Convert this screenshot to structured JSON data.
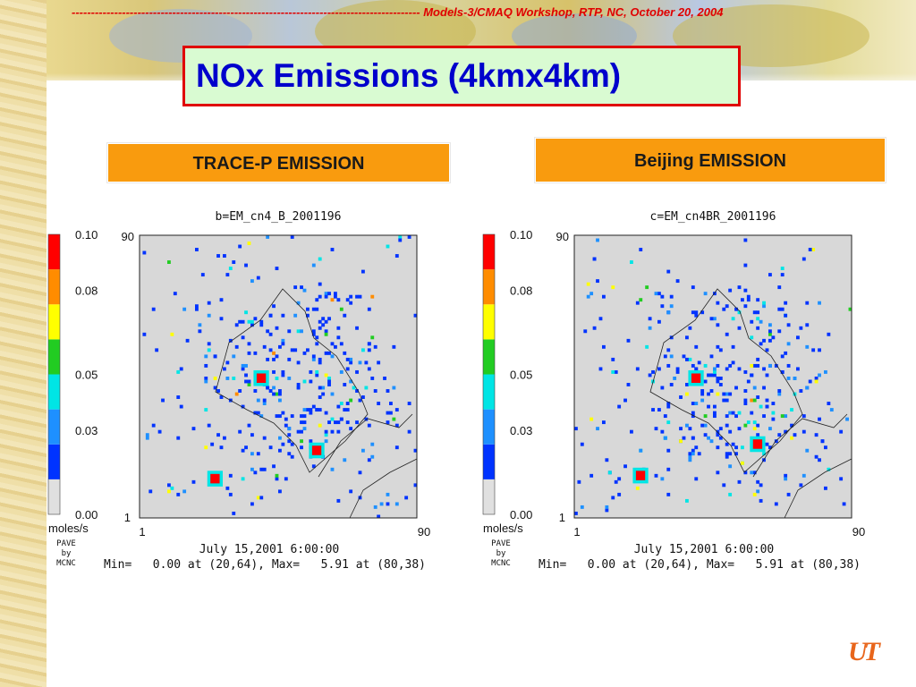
{
  "header_text": "------------------------------------------------------------------------------------------ Models-3/CMAQ Workshop, RTP, NC, October 20, 2004",
  "title": "NOx Emissions (4kmx4km)",
  "colors": {
    "title_border": "#e00000",
    "title_bg": "#d9fbd2",
    "title_text": "#0000cc",
    "label_bg": "#f99b0e",
    "colorbar": [
      "#e0e0e0",
      "#0033ff",
      "#1e90ff",
      "#00e5e5",
      "#22cc22",
      "#ffff00",
      "#ff8c00",
      "#ff0000"
    ],
    "map_bg": "#d8d8d8"
  },
  "panels": [
    {
      "label": "TRACE-P EMISSION"
    },
    {
      "label": "Beijing EMISSION"
    }
  ],
  "chart_data": [
    {
      "type": "heatmap",
      "title": "b=EM_cn4_B_2001196",
      "x_range": [
        1,
        90
      ],
      "y_range": [
        1,
        90
      ],
      "x_ticks": [
        "1",
        "90"
      ],
      "y_ticks": [
        "1",
        "90"
      ],
      "colorbar": {
        "ticks": [
          "0.10",
          "0.08",
          "0.05",
          "0.03",
          "0.00"
        ],
        "unit": "moles/s",
        "range": [
          0,
          0.1
        ]
      },
      "credit": [
        "PAVE",
        "by",
        "MCNC"
      ],
      "date": "July 15,2001 6:00:00",
      "stats": "Min=   0.00 at (20,64), Max=   5.91 at (80,38)",
      "hotspots": [
        {
          "x": 40,
          "y": 45,
          "level": 7
        },
        {
          "x": 58,
          "y": 22,
          "level": 7
        },
        {
          "x": 25,
          "y": 13,
          "level": 7
        }
      ]
    },
    {
      "type": "heatmap",
      "title": "c=EM_cn4BR_2001196",
      "x_range": [
        1,
        90
      ],
      "y_range": [
        1,
        90
      ],
      "x_ticks": [
        "1",
        "90"
      ],
      "y_ticks": [
        "1",
        "90"
      ],
      "colorbar": {
        "ticks": [
          "0.10",
          "0.08",
          "0.05",
          "0.03",
          "0.00"
        ],
        "unit": "moles/s",
        "range": [
          0,
          0.1
        ]
      },
      "credit": [
        "PAVE",
        "by",
        "MCNC"
      ],
      "date": "July 15,2001 6:00:00",
      "stats": "Min=   0.00 at (20,64), Max=   5.91 at (80,38)",
      "hotspots": [
        {
          "x": 40,
          "y": 45,
          "level": 7
        },
        {
          "x": 60,
          "y": 24,
          "level": 7
        },
        {
          "x": 22,
          "y": 14,
          "level": 7
        }
      ]
    }
  ]
}
